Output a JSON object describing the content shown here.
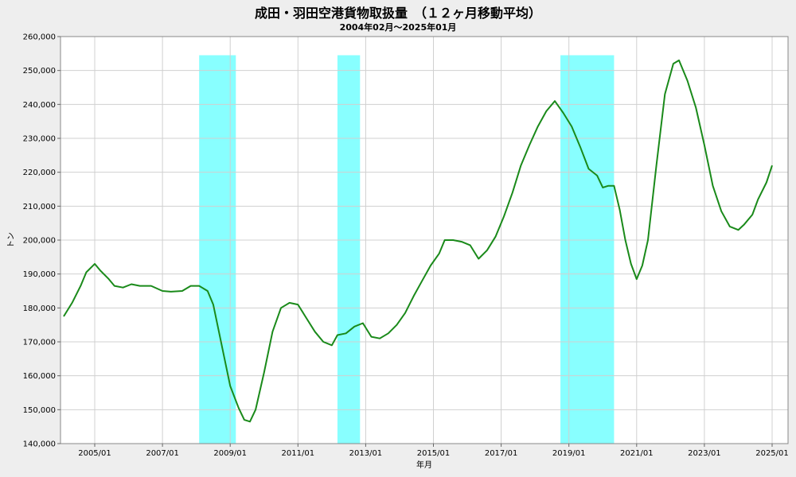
{
  "chart_data": {
    "type": "line",
    "title": "成田・羽田空港貨物取扱量　（１２ヶ月移動平均）",
    "subtitle": "2004年02月～2025年01月",
    "xlabel": "年月",
    "ylabel": "トン",
    "xlim": [
      "2004-02",
      "2025-01"
    ],
    "ylim": [
      140000,
      260000
    ],
    "y_ticks": [
      140000,
      150000,
      160000,
      170000,
      180000,
      190000,
      200000,
      210000,
      220000,
      230000,
      240000,
      250000,
      260000
    ],
    "y_tick_labels": [
      "140,000",
      "150,000",
      "160,000",
      "170,000",
      "180,000",
      "190,000",
      "200,000",
      "210,000",
      "220,000",
      "230,000",
      "240,000",
      "250,000",
      "260,000"
    ],
    "x_ticks": [
      "2005-01",
      "2007-01",
      "2009-01",
      "2011-01",
      "2013-01",
      "2015-01",
      "2017-01",
      "2019-01",
      "2021-01",
      "2023-01",
      "2025-01"
    ],
    "x_tick_labels": [
      "2005/01",
      "2007/01",
      "2009/01",
      "2011/01",
      "2013/01",
      "2015/01",
      "2017/01",
      "2019/01",
      "2021/01",
      "2023/01",
      "2025/01"
    ],
    "grid": true,
    "line_color": "#1a8a1a",
    "shade_color": "#88ffff",
    "shaded_periods": [
      [
        "2008-02",
        "2009-03"
      ],
      [
        "2012-03",
        "2012-11"
      ],
      [
        "2018-10",
        "2020-05"
      ]
    ],
    "series": [
      {
        "points": [
          [
            "2004-02",
            177500
          ],
          [
            "2004-05",
            181500
          ],
          [
            "2004-08",
            186500
          ],
          [
            "2004-10",
            190500
          ],
          [
            "2005-01",
            193000
          ],
          [
            "2005-03",
            191000
          ],
          [
            "2005-06",
            188500
          ],
          [
            "2005-08",
            186500
          ],
          [
            "2005-11",
            186000
          ],
          [
            "2006-02",
            187000
          ],
          [
            "2006-05",
            186500
          ],
          [
            "2006-09",
            186500
          ],
          [
            "2007-01",
            185000
          ],
          [
            "2007-04",
            184800
          ],
          [
            "2007-08",
            185000
          ],
          [
            "2007-11",
            186500
          ],
          [
            "2008-02",
            186500
          ],
          [
            "2008-05",
            185000
          ],
          [
            "2008-07",
            181000
          ],
          [
            "2008-09",
            173000
          ],
          [
            "2008-11",
            165000
          ],
          [
            "2009-01",
            157000
          ],
          [
            "2009-04",
            150500
          ],
          [
            "2009-06",
            147000
          ],
          [
            "2009-08",
            146500
          ],
          [
            "2009-10",
            150000
          ],
          [
            "2010-01",
            161000
          ],
          [
            "2010-04",
            173000
          ],
          [
            "2010-07",
            180000
          ],
          [
            "2010-10",
            181500
          ],
          [
            "2011-01",
            181000
          ],
          [
            "2011-04",
            177000
          ],
          [
            "2011-07",
            173000
          ],
          [
            "2011-10",
            170000
          ],
          [
            "2012-01",
            169000
          ],
          [
            "2012-03",
            172000
          ],
          [
            "2012-06",
            172500
          ],
          [
            "2012-09",
            174500
          ],
          [
            "2012-12",
            175500
          ],
          [
            "2013-03",
            171500
          ],
          [
            "2013-06",
            171000
          ],
          [
            "2013-09",
            172500
          ],
          [
            "2013-12",
            175000
          ],
          [
            "2014-03",
            178500
          ],
          [
            "2014-06",
            183500
          ],
          [
            "2014-09",
            188000
          ],
          [
            "2014-12",
            192500
          ],
          [
            "2015-03",
            196000
          ],
          [
            "2015-05",
            200000
          ],
          [
            "2015-08",
            200000
          ],
          [
            "2015-11",
            199500
          ],
          [
            "2016-02",
            198500
          ],
          [
            "2016-05",
            194500
          ],
          [
            "2016-08",
            197000
          ],
          [
            "2016-11",
            201000
          ],
          [
            "2017-02",
            207000
          ],
          [
            "2017-05",
            214000
          ],
          [
            "2017-08",
            222000
          ],
          [
            "2017-11",
            228000
          ],
          [
            "2018-02",
            233500
          ],
          [
            "2018-05",
            238000
          ],
          [
            "2018-08",
            241000
          ],
          [
            "2018-11",
            237500
          ],
          [
            "2019-02",
            233500
          ],
          [
            "2019-05",
            227500
          ],
          [
            "2019-08",
            221000
          ],
          [
            "2019-11",
            219000
          ],
          [
            "2020-01",
            215500
          ],
          [
            "2020-03",
            216000
          ],
          [
            "2020-05",
            216000
          ],
          [
            "2020-07",
            209000
          ],
          [
            "2020-09",
            200000
          ],
          [
            "2020-11",
            193000
          ],
          [
            "2021-01",
            188500
          ],
          [
            "2021-03",
            192500
          ],
          [
            "2021-05",
            200000
          ],
          [
            "2021-08",
            222000
          ],
          [
            "2021-11",
            243000
          ],
          [
            "2022-02",
            252000
          ],
          [
            "2022-04",
            253000
          ],
          [
            "2022-07",
            247000
          ],
          [
            "2022-10",
            239000
          ],
          [
            "2023-01",
            228000
          ],
          [
            "2023-04",
            216000
          ],
          [
            "2023-07",
            208500
          ],
          [
            "2023-10",
            204000
          ],
          [
            "2024-01",
            203000
          ],
          [
            "2024-03",
            204500
          ],
          [
            "2024-06",
            207500
          ],
          [
            "2024-08",
            212000
          ],
          [
            "2024-11",
            217000
          ],
          [
            "2025-01",
            222000
          ]
        ]
      }
    ]
  }
}
